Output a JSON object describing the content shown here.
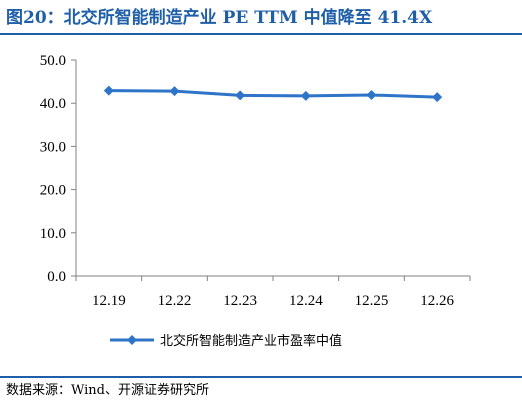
{
  "title": "图20：北交所智能制造产业 PE TTM 中值降至 41.4X",
  "source": "数据来源：Wind、开源证券研究所",
  "colors": {
    "accent": "#1f5fa8",
    "series": "#2e75c9"
  },
  "chart_data": {
    "type": "line",
    "x": [
      "12.19",
      "12.22",
      "12.23",
      "12.24",
      "12.25",
      "12.26"
    ],
    "series": [
      {
        "name": "北交所智能制造产业市盈率中值",
        "values": [
          42.9,
          42.8,
          41.8,
          41.7,
          41.9,
          41.4
        ]
      }
    ],
    "yticks": [
      "0.0",
      "10.0",
      "20.0",
      "30.0",
      "40.0",
      "50.0"
    ],
    "ylim": [
      0,
      50
    ],
    "marker": "diamond",
    "grid": false,
    "legend": "bottom"
  }
}
